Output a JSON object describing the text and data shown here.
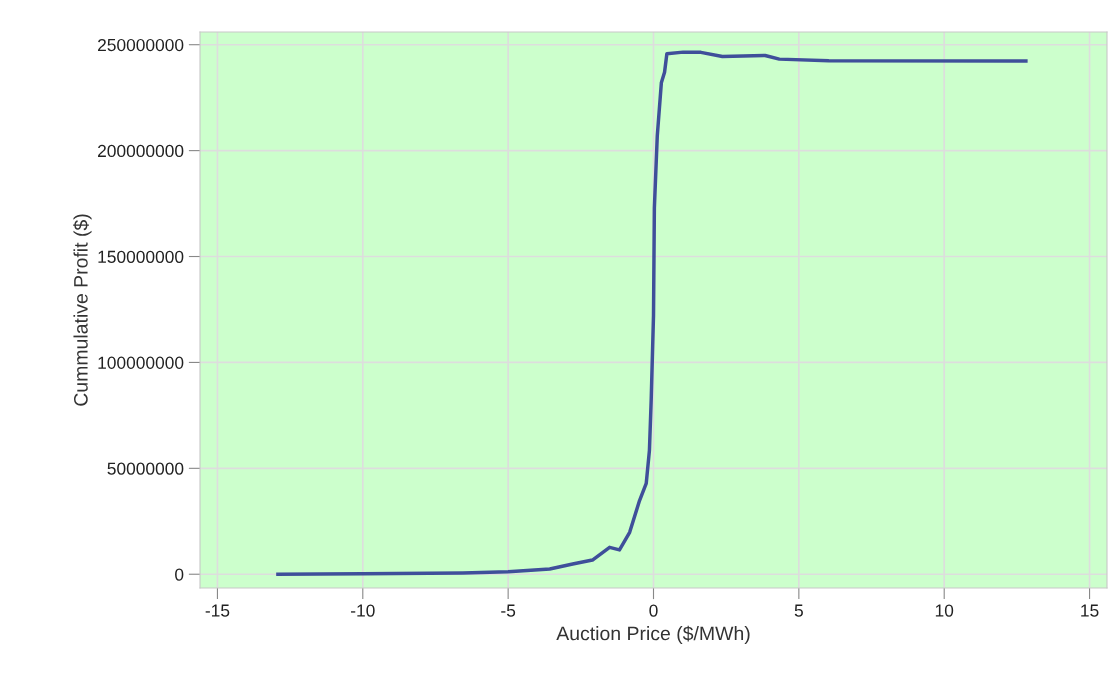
{
  "chart_data": {
    "type": "line",
    "xlabel": "Auction Price ($/MWh)",
    "ylabel": "Cummulative Profit ($)",
    "x": [
      -12.92,
      -10,
      -6.56,
      -5,
      -3.57,
      -2.78,
      -2.1,
      -1.51,
      -1.17,
      -0.82,
      -0.48,
      -0.25,
      -0.14,
      -0.08,
      0,
      0.03,
      0.13,
      0.27,
      0.38,
      0.46,
      1.02,
      1.63,
      2.37,
      3.84,
      4.33,
      6.03,
      12.81
    ],
    "series": [
      {
        "color": "#3f4f9a",
        "values": [
          0,
          200000,
          600000,
          1200000,
          2500000,
          4800000,
          6700000,
          12700000,
          11500000,
          19800000,
          34800000,
          42900000,
          58500000,
          82000000,
          122000000,
          173000000,
          207000000,
          232000000,
          237000000,
          245700000,
          246500000,
          246400000,
          244400000,
          244900000,
          243200000,
          242400000,
          242300000
        ]
      }
    ],
    "xlim": [
      -15.6,
      15.6
    ],
    "xticks": [
      -15,
      -10,
      -5,
      0,
      5,
      10,
      15
    ],
    "ylim": [
      -6500000,
      256000000
    ],
    "yticks": [
      0,
      50000000,
      100000000,
      150000000,
      200000000,
      250000000
    ],
    "grid": true,
    "line_style": "solid",
    "marker": "none"
  }
}
